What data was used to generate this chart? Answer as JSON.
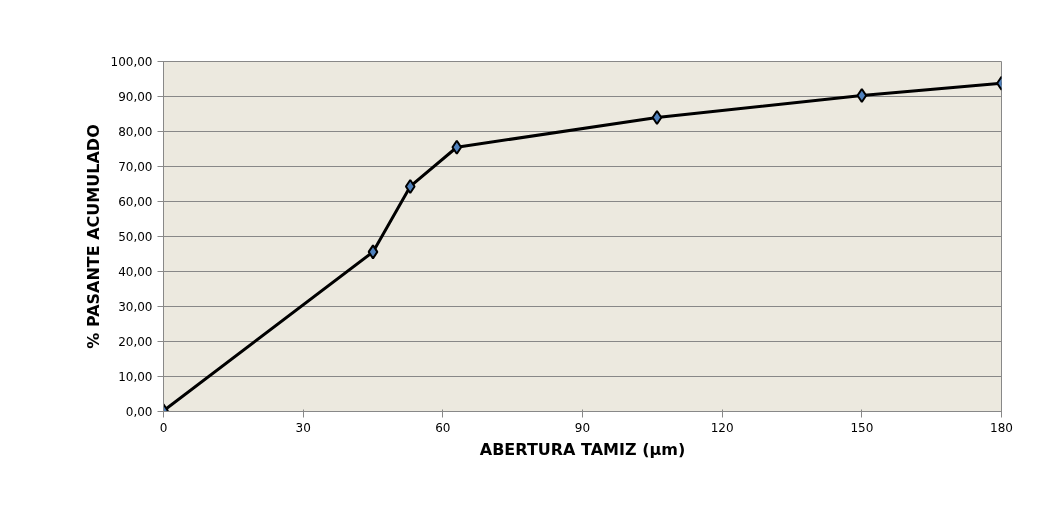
{
  "chart_data": {
    "type": "line",
    "xlabel": "ABERTURA TAMIZ (µm)",
    "ylabel": "% PASANTE ACUMULADO",
    "x": [
      0,
      45,
      53,
      63,
      106,
      150,
      180
    ],
    "series": [
      {
        "color": "#000000",
        "values": [
          0.2,
          45.6,
          64.3,
          75.5,
          84.0,
          90.3,
          93.8
        ]
      }
    ],
    "xlim": [
      0,
      180
    ],
    "xticks": [
      0,
      30,
      60,
      90,
      120,
      150,
      180
    ],
    "ylim": [
      0,
      100
    ],
    "yticks": [
      {
        "value": 0,
        "label": "0,00"
      },
      {
        "value": 10,
        "label": "10,00"
      },
      {
        "value": 20,
        "label": "20,00"
      },
      {
        "value": 30,
        "label": "30,00"
      },
      {
        "value": 40,
        "label": "40,00"
      },
      {
        "value": 50,
        "label": "50,00"
      },
      {
        "value": 60,
        "label": "60,00"
      },
      {
        "value": 70,
        "label": "70,00"
      },
      {
        "value": 80,
        "label": "80,00"
      },
      {
        "value": 90,
        "label": "90,00"
      },
      {
        "value": 100,
        "label": "100,00"
      }
    ],
    "grid": "y",
    "marker": "diamond",
    "line_style": "solid"
  }
}
